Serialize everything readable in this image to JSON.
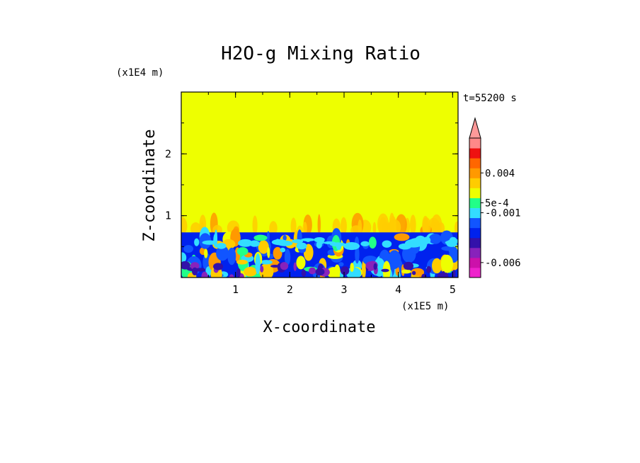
{
  "chart_data": {
    "type": "heatmap",
    "title": "H2O-g Mixing Ratio",
    "xlabel": "X-coordinate",
    "ylabel": "Z-coordinate",
    "x_multiplier_label": "(x1E5 m)",
    "y_multiplier_label": "(x1E4 m)",
    "time_label": "t=55200 s",
    "xlim": [
      0,
      5.1
    ],
    "ylim": [
      0,
      3.0
    ],
    "x_ticks": [
      1,
      2,
      3,
      4,
      5
    ],
    "x_tick_labels": [
      "1",
      "2",
      "3",
      "4",
      "5"
    ],
    "y_ticks": [
      1,
      2
    ],
    "y_tick_labels": [
      "1",
      "2"
    ],
    "field_regions": {
      "upper_uniform_top_z": 3.0,
      "upper_uniform_bottom_z": 0.73,
      "upper_value_class": "yellow",
      "plume_top_z": 1.05,
      "boundary_layer_top_z": 0.73
    },
    "colorbar": {
      "colors_bottom_to_top": [
        "#ee22cc",
        "#cc11aa",
        "#8822bb",
        "#3311aa",
        "#0022ee",
        "#1155ff",
        "#33ddff",
        "#22ff88",
        "#eeff00",
        "#ffcc00",
        "#ff9900",
        "#ff6600",
        "#ee1111",
        "#ff8888"
      ],
      "extend_top_color": "#ff9999",
      "labels": [
        "0.004",
        "5e-4",
        "-0.001",
        "-0.006"
      ],
      "label_positions": [
        10.5,
        7.5,
        6.5,
        1.5
      ]
    }
  }
}
